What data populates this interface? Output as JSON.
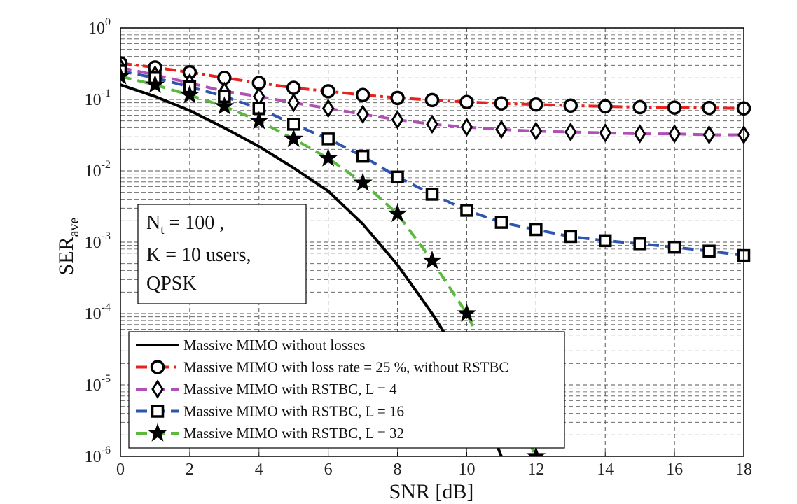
{
  "chart_data": {
    "type": "line",
    "xlabel": "SNR [dB]",
    "ylabel": "SER",
    "ylabel_sub": "ave",
    "xlim": [
      0,
      18
    ],
    "ylim": [
      1e-06,
      1
    ],
    "yscale": "log",
    "grid": true,
    "legend_position": "bottom-left",
    "x_ticks": [
      0,
      2,
      4,
      6,
      8,
      10,
      12,
      14,
      16,
      18
    ],
    "y_ticks": [
      {
        "value": 1,
        "base": "10",
        "exp": "0"
      },
      {
        "value": 0.1,
        "base": "10",
        "exp": "-1"
      },
      {
        "value": 0.01,
        "base": "10",
        "exp": "-2"
      },
      {
        "value": 0.001,
        "base": "10",
        "exp": "-3"
      },
      {
        "value": 0.0001,
        "base": "10",
        "exp": "-4"
      },
      {
        "value": 1e-05,
        "base": "10",
        "exp": "-5"
      },
      {
        "value": 1e-06,
        "base": "10",
        "exp": "-6"
      }
    ],
    "annotation": {
      "line1_main": "N",
      "line1_sub": "t",
      "line1_rest": " = 100 ,",
      "line2": "K = 10 users,",
      "line3": "QPSK"
    },
    "series": [
      {
        "name": "Massive MIMO without losses",
        "color": "#000000",
        "dash": "solid",
        "marker": "none",
        "x": [
          0,
          1,
          2,
          3,
          4,
          5,
          6,
          7,
          8,
          9,
          10,
          11
        ],
        "values": [
          0.16,
          0.11,
          0.07,
          0.04,
          0.022,
          0.011,
          0.0052,
          0.0018,
          0.00048,
          0.0001,
          1.7e-05,
          1e-06
        ]
      },
      {
        "name": "Massive MIMO with loss rate = 25 %, without RSTBC",
        "color": "#e8231f",
        "dash": "dashdot",
        "marker": "circle",
        "x": [
          0,
          1,
          2,
          3,
          4,
          5,
          6,
          7,
          8,
          9,
          10,
          11,
          12,
          13,
          14,
          15,
          16,
          17,
          18
        ],
        "values": [
          0.32,
          0.28,
          0.24,
          0.2,
          0.17,
          0.145,
          0.13,
          0.115,
          0.105,
          0.098,
          0.092,
          0.088,
          0.085,
          0.082,
          0.08,
          0.078,
          0.077,
          0.076,
          0.075
        ]
      },
      {
        "name": "Massive MIMO with RSTBC,  L = 4",
        "color": "#b04fb5",
        "dash": "dash",
        "marker": "diamond",
        "x": [
          0,
          1,
          2,
          3,
          4,
          5,
          6,
          7,
          8,
          9,
          10,
          11,
          12,
          13,
          14,
          15,
          16,
          17,
          18
        ],
        "values": [
          0.28,
          0.22,
          0.17,
          0.13,
          0.11,
          0.09,
          0.075,
          0.062,
          0.052,
          0.045,
          0.041,
          0.038,
          0.036,
          0.035,
          0.034,
          0.033,
          0.033,
          0.032,
          0.032
        ]
      },
      {
        "name": "Massive MIMO with RSTBC,  L = 16",
        "color": "#2e55b0",
        "dash": "dash",
        "marker": "square",
        "x": [
          0,
          1,
          2,
          3,
          4,
          5,
          6,
          7,
          8,
          9,
          10,
          11,
          12,
          13,
          14,
          15,
          16,
          17,
          18
        ],
        "values": [
          0.25,
          0.2,
          0.15,
          0.11,
          0.075,
          0.045,
          0.028,
          0.016,
          0.0082,
          0.0047,
          0.0028,
          0.0019,
          0.0015,
          0.0012,
          0.00105,
          0.00095,
          0.00085,
          0.00075,
          0.00065
        ]
      },
      {
        "name": "Massive MIMO with RSTBC,  L = 32",
        "color": "#5cb93f",
        "dash": "dash",
        "marker": "star",
        "x": [
          0,
          1,
          2,
          3,
          4,
          5,
          6,
          7,
          8,
          9,
          10,
          11,
          12
        ],
        "values": [
          0.21,
          0.16,
          0.115,
          0.08,
          0.05,
          0.028,
          0.015,
          0.0068,
          0.0025,
          0.00055,
          0.0001,
          1e-05,
          1e-06
        ]
      }
    ]
  }
}
